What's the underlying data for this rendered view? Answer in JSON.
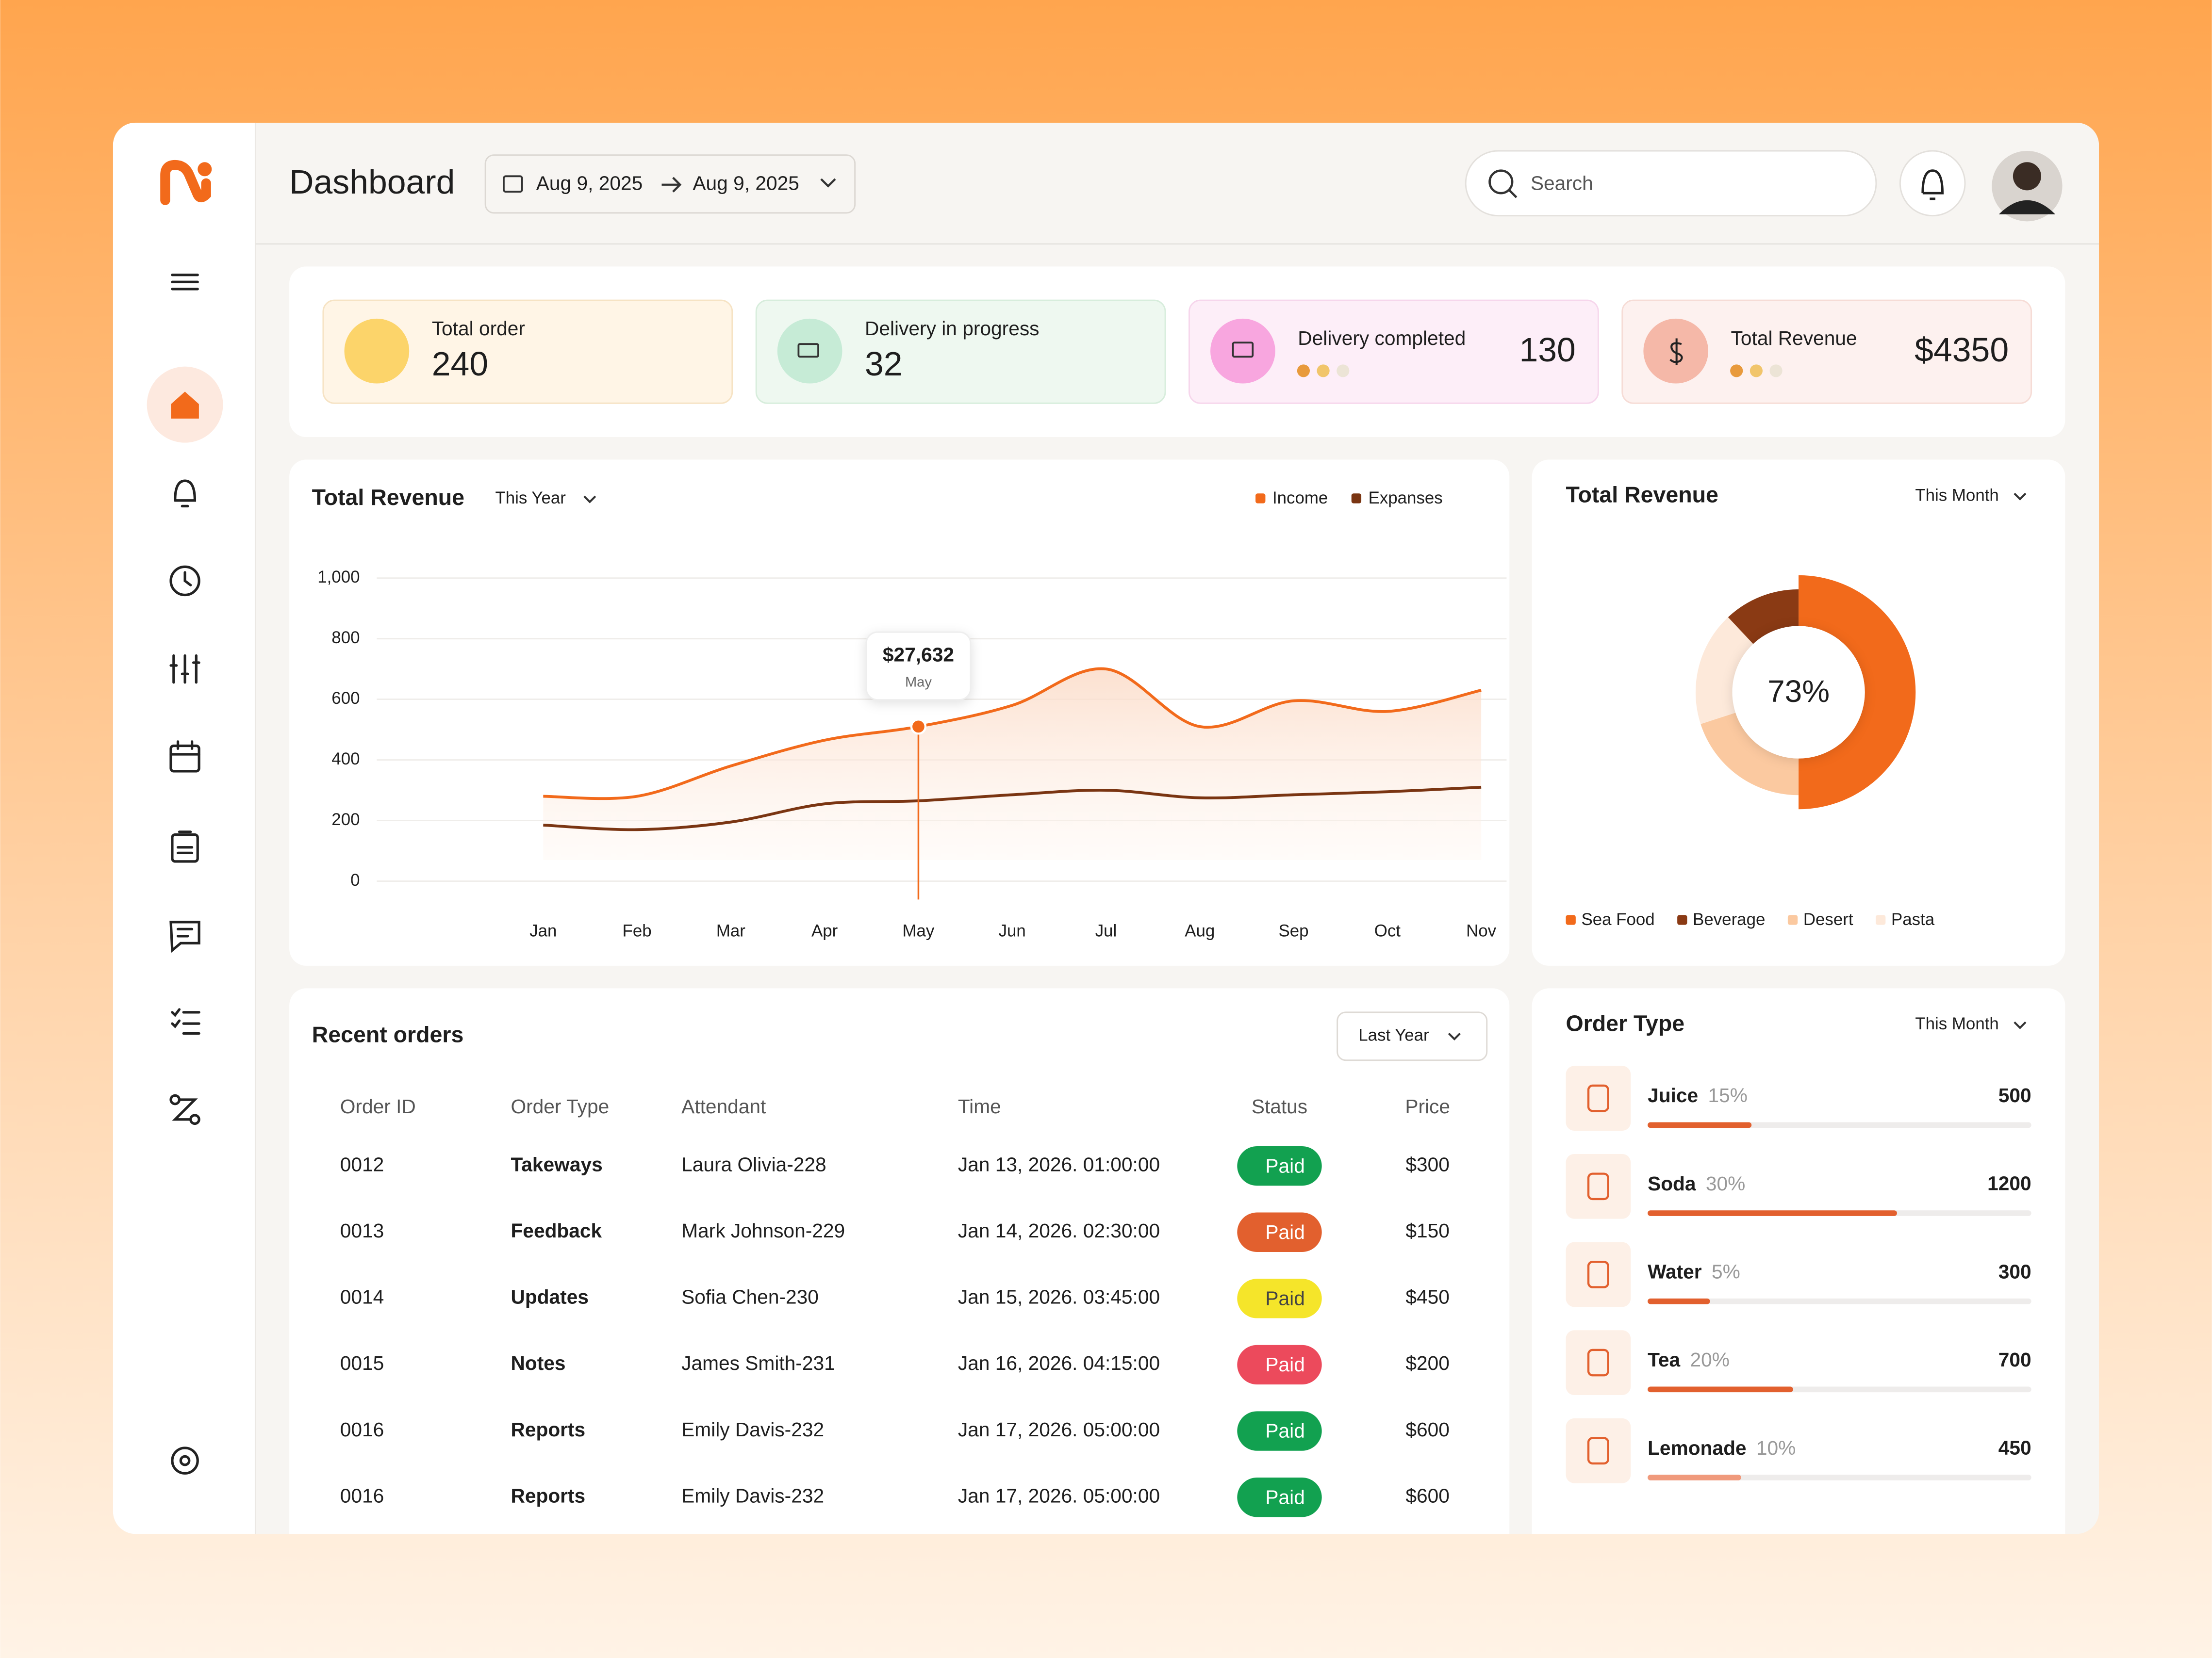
{
  "header": {
    "title": "Dashboard",
    "date_from": "Aug 9, 2025",
    "date_to": "Aug 9, 2025",
    "search_placeholder": "Search"
  },
  "stats": [
    {
      "label": "Total order",
      "value": 240
    },
    {
      "label": "Delivery in progress",
      "value": 32
    },
    {
      "label": "Delivery completed",
      "value": 130
    },
    {
      "label": "Total Revenue",
      "value": "$4350"
    }
  ],
  "chart_data": [
    {
      "type": "line",
      "title": "Total Revenue",
      "period": "This Year",
      "categories": [
        "Jan",
        "Feb",
        "Mar",
        "Apr",
        "May",
        "Jun",
        "Jul",
        "Aug",
        "Sep",
        "Oct",
        "Nov"
      ],
      "series": [
        {
          "name": "Income",
          "color": "#f26a1b",
          "values": [
            280,
            280,
            380,
            465,
            510,
            580,
            700,
            510,
            595,
            560,
            630
          ]
        },
        {
          "name": "Expanses",
          "color": "#7a3512",
          "values": [
            185,
            170,
            195,
            255,
            265,
            285,
            300,
            275,
            285,
            295,
            310
          ]
        }
      ],
      "ylim": [
        0,
        1000
      ],
      "yticks": [
        0,
        200,
        400,
        600,
        800,
        {
          "value": 1000,
          "label": "1,000"
        }
      ],
      "grid": true,
      "legend": "top-right",
      "annotations": [
        {
          "text": "$27,632",
          "label": "May"
        }
      ]
    },
    {
      "type": "pie",
      "title": "Total Revenue",
      "period": "This Month",
      "center_label": "73%",
      "categories": [
        "Sea Food",
        "Beverage",
        "Desert",
        "Pasta"
      ],
      "values": [
        50,
        12,
        20,
        18
      ],
      "colors": [
        "#f26a1b",
        "#8a3a14",
        "#fbc9a0",
        "#fde9da"
      ],
      "legend": "bottom"
    }
  ],
  "recent_orders": {
    "title": "Recent orders",
    "period": "Last Year",
    "columns": [
      "Order ID",
      "Order Type",
      "Attendant",
      "Time",
      "Status",
      "Price"
    ],
    "rows": [
      [
        "0012",
        "Takeways",
        "Laura Olivia-228",
        "Jan 13, 2026. 01:00:00",
        "Paid",
        "$300"
      ],
      [
        "0013",
        "Feedback",
        "Mark Johnson-229",
        "Jan 14, 2026. 02:30:00",
        "Paid",
        "$150"
      ],
      [
        "0014",
        "Updates",
        "Sofia Chen-230",
        "Jan 15, 2026. 03:45:00",
        "Paid",
        "$450"
      ],
      [
        "0015",
        "Notes",
        "James Smith-231",
        "Jan 16, 2026. 04:15:00",
        "Paid",
        "$200"
      ],
      [
        "0016",
        "Reports",
        "Emily Davis-232",
        "Jan 17, 2026. 05:00:00",
        "Paid",
        "$600"
      ],
      [
        "0016",
        "Reports",
        "Emily Davis-232",
        "Jan 17, 2026. 05:00:00",
        "Paid",
        "$600"
      ]
    ],
    "status_colors": [
      "#12a150",
      "#e2602e",
      "#f5e52a",
      "#ec4a5c",
      "#12a150",
      "#12a150"
    ]
  },
  "order_type": {
    "title": "Order Type",
    "period": "This Month",
    "items": [
      {
        "name": "Juice",
        "share": "15%",
        "value": 500
      },
      {
        "name": "Soda",
        "share": "30%",
        "value": 1200
      },
      {
        "name": "Water",
        "share": "5%",
        "value": 300
      },
      {
        "name": "Tea",
        "share": "20%",
        "value": 700
      },
      {
        "name": "Lemonade",
        "share": "10%",
        "value": 450
      }
    ]
  }
}
